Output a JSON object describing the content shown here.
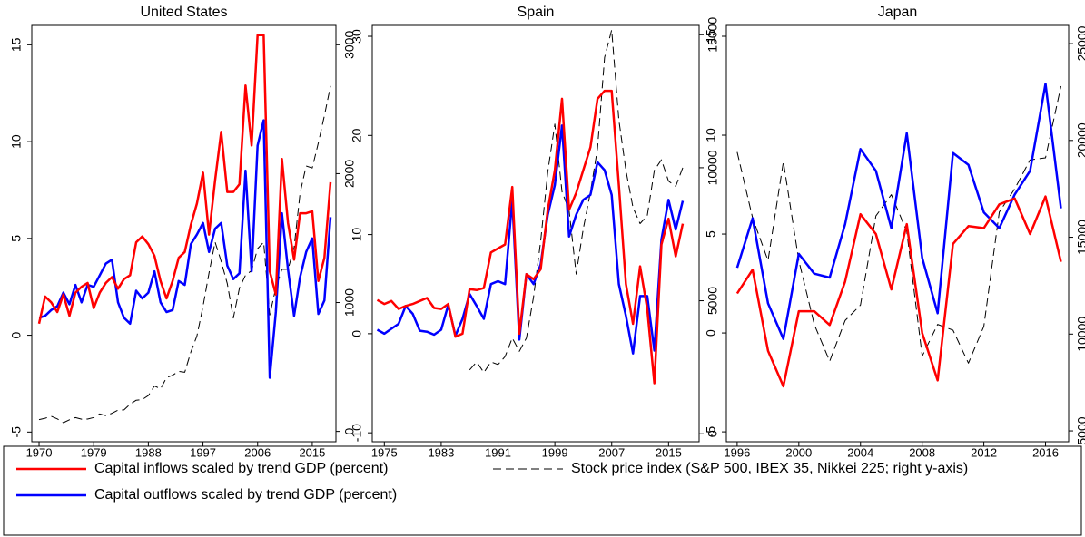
{
  "chart_data": [
    {
      "type": "line",
      "title": "United States",
      "x": [
        1970,
        1971,
        1972,
        1973,
        1974,
        1975,
        1976,
        1977,
        1978,
        1979,
        1980,
        1981,
        1982,
        1983,
        1984,
        1985,
        1986,
        1987,
        1988,
        1989,
        1990,
        1991,
        1992,
        1993,
        1994,
        1995,
        1996,
        1997,
        1998,
        1999,
        2000,
        2001,
        2002,
        2003,
        2004,
        2005,
        2006,
        2007,
        2008,
        2009,
        2010,
        2011,
        2012,
        2013,
        2014,
        2015,
        2016,
        2017,
        2018
      ],
      "series": [
        {
          "name": "Capital inflows scaled by trend GDP (percent)",
          "color": "#ff0000",
          "values": [
            0.6,
            2.0,
            1.7,
            1.2,
            2.1,
            1.0,
            2.2,
            2.5,
            2.7,
            1.4,
            2.2,
            2.7,
            3.0,
            2.4,
            2.9,
            3.1,
            4.8,
            5.1,
            4.7,
            4.1,
            2.8,
            1.9,
            2.8,
            4.0,
            4.3,
            5.7,
            6.8,
            8.4,
            5.2,
            8.0,
            10.5,
            7.4,
            7.4,
            7.8,
            12.9,
            9.8,
            15.5,
            15.5,
            3.3,
            2.1,
            9.1,
            5.8,
            3.9,
            6.3,
            6.3,
            6.4,
            2.8,
            4.0,
            7.9
          ]
        },
        {
          "name": "Capital outflows scaled by trend GDP (percent)",
          "color": "#0000ff",
          "values": [
            0.9,
            1.0,
            1.3,
            1.5,
            2.2,
            1.6,
            2.6,
            1.7,
            2.6,
            2.5,
            3.1,
            3.7,
            3.9,
            1.7,
            0.9,
            0.6,
            2.3,
            1.9,
            2.2,
            3.3,
            1.7,
            1.2,
            1.3,
            2.8,
            2.6,
            4.7,
            5.2,
            5.8,
            4.3,
            5.5,
            5.8,
            3.6,
            2.9,
            3.2,
            8.5,
            3.3,
            9.8,
            11.1,
            -2.2,
            1.2,
            6.3,
            3.4,
            1.0,
            3.0,
            4.3,
            5.0,
            1.1,
            1.8,
            6.1
          ]
        },
        {
          "name": "Stock price index (S&P 500, IBEX 35, Nikkei 225; right y-axis)",
          "color": "#000000",
          "dashed": true,
          "axis": "y2",
          "values": [
            92,
            102,
            118,
            97,
            68,
            90,
            107,
            95,
            96,
            108,
            136,
            122,
            141,
            165,
            167,
            211,
            242,
            247,
            278,
            353,
            330,
            417,
            436,
            466,
            459,
            616,
            741,
            970,
            1229,
            1469,
            1320,
            1148,
            880,
            1112,
            1212,
            1248,
            1418,
            1468,
            903,
            1115,
            1258,
            1258,
            1426,
            1848,
            2059,
            2044,
            2239,
            2450,
            2680
          ]
        }
      ],
      "xlim": [
        1968.8,
        2018.9
      ],
      "xticks": [
        1970,
        1979,
        1988,
        1997,
        2006,
        2015
      ],
      "ylim": [
        -5.5,
        16
      ],
      "yticks": [
        -5,
        0,
        5,
        10,
        15
      ],
      "y2lim": [
        -80,
        3150
      ],
      "y2ticks": [
        0,
        1000,
        2000,
        3000
      ]
    },
    {
      "type": "line",
      "title": "Spain",
      "x": [
        1974,
        1975,
        1976,
        1977,
        1978,
        1979,
        1980,
        1981,
        1982,
        1983,
        1984,
        1985,
        1986,
        1987,
        1988,
        1989,
        1990,
        1991,
        1992,
        1993,
        1994,
        1995,
        1996,
        1997,
        1998,
        1999,
        2000,
        2001,
        2002,
        2003,
        2004,
        2005,
        2006,
        2007,
        2008,
        2009,
        2010,
        2011,
        2012,
        2013,
        2014,
        2015,
        2016,
        2017
      ],
      "series": [
        {
          "name": "Capital inflows scaled by trend GDP (percent)",
          "color": "#ff0000",
          "values": [
            3.4,
            3.0,
            3.3,
            2.5,
            2.8,
            3.0,
            3.3,
            3.6,
            2.6,
            2.5,
            3.0,
            -0.3,
            0.0,
            4.5,
            4.4,
            4.6,
            8.2,
            8.6,
            9.0,
            14.8,
            0.0,
            6.0,
            5.5,
            6.5,
            12.5,
            16.5,
            23.7,
            12.5,
            14.2,
            16.5,
            18.8,
            23.7,
            24.5,
            24.5,
            15.0,
            5.0,
            1.0,
            6.8,
            2.5,
            -5.0,
            9.0,
            11.6,
            7.8,
            11.1
          ]
        },
        {
          "name": "Capital outflows scaled by trend GDP (percent)",
          "color": "#0000ff",
          "values": [
            0.4,
            0.0,
            0.5,
            1.0,
            2.8,
            2.0,
            0.3,
            0.2,
            -0.1,
            0.4,
            2.9,
            -0.2,
            1.5,
            4.0,
            2.8,
            1.5,
            5.0,
            5.3,
            5.0,
            13.5,
            -0.6,
            6.0,
            5.0,
            7.0,
            12.0,
            15.0,
            21.0,
            9.8,
            12.0,
            13.5,
            14.0,
            17.3,
            16.5,
            14.0,
            5.0,
            1.8,
            -2.0,
            3.8,
            3.8,
            -1.7,
            9.5,
            13.5,
            10.5,
            13.4
          ]
        },
        {
          "name": "Stock price index (S&P 500, IBEX 35, Nikkei 225; right y-axis)",
          "color": "#000000",
          "dashed": true,
          "axis": "y2",
          "values": [
            null,
            null,
            null,
            null,
            null,
            null,
            null,
            null,
            null,
            null,
            null,
            null,
            null,
            2400,
            2700,
            2300,
            2700,
            2600,
            2900,
            3600,
            3100,
            3600,
            5150,
            7250,
            9840,
            11640,
            9100,
            8400,
            6000,
            7700,
            9080,
            10730,
            14150,
            15180,
            11800,
            9900,
            8500,
            7900,
            8200,
            9900,
            10300,
            9500,
            9300,
            10000
          ]
        }
      ],
      "xlim": [
        1973.3,
        2019.3
      ],
      "xticks": [
        1975,
        1983,
        1991,
        1999,
        2007,
        2015
      ],
      "ylim": [
        -10.9,
        31.1
      ],
      "yticks": [
        -10,
        0,
        10,
        20,
        30
      ],
      "y2lim": [
        -300,
        15350
      ],
      "y2ticks": [
        0,
        5000,
        10000,
        15000
      ]
    },
    {
      "type": "line",
      "title": "Japan",
      "x": [
        1996,
        1997,
        1998,
        1999,
        2000,
        2001,
        2002,
        2003,
        2004,
        2005,
        2006,
        2007,
        2008,
        2009,
        2010,
        2011,
        2012,
        2013,
        2014,
        2015,
        2016,
        2017
      ],
      "series": [
        {
          "name": "Capital inflows scaled by trend GDP (percent)",
          "color": "#ff0000",
          "values": [
            2.0,
            3.2,
            -0.9,
            -2.7,
            1.1,
            1.1,
            0.4,
            2.6,
            6.0,
            5.0,
            2.2,
            5.5,
            0.0,
            -2.4,
            4.5,
            5.4,
            5.3,
            6.5,
            6.8,
            5.0,
            6.9,
            3.6
          ]
        },
        {
          "name": "Capital outflows scaled by trend GDP (percent)",
          "color": "#0000ff",
          "values": [
            3.3,
            5.8,
            1.5,
            -0.3,
            4.0,
            3.0,
            2.8,
            5.5,
            9.3,
            8.2,
            5.3,
            10.1,
            3.8,
            1.0,
            9.1,
            8.5,
            6.1,
            5.3,
            7.0,
            8.2,
            12.6,
            6.3
          ]
        },
        {
          "name": "Stock price index (S&P 500, IBEX 35, Nikkei 225; right y-axis)",
          "color": "#000000",
          "dashed": true,
          "axis": "y2",
          "values": [
            19400,
            16000,
            13800,
            18900,
            13800,
            10500,
            8600,
            10700,
            11500,
            16100,
            17200,
            15300,
            8860,
            10500,
            10200,
            8500,
            10400,
            16300,
            17500,
            19000,
            19100,
            22800
          ]
        }
      ],
      "xlim": [
        1995.3,
        2017.5
      ],
      "xticks": [
        1996,
        2000,
        2004,
        2008,
        2012,
        2016
      ],
      "ylim": [
        -5.5,
        15.55
      ],
      "yticks": [
        -5,
        0,
        5,
        10,
        15
      ],
      "y2lim": [
        4440,
        25940
      ],
      "y2ticks": [
        5000,
        10000,
        15000,
        20000,
        25000
      ]
    }
  ]
}
